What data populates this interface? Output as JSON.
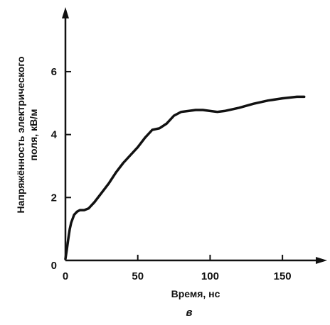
{
  "chart_data": {
    "type": "line",
    "xlabel": "Время, нс",
    "ylabel_lines": [
      "Напряжённость электрического",
      "поля, кВ/м"
    ],
    "panel_label": "в",
    "xlim": [
      0,
      175
    ],
    "ylim": [
      0,
      7.6
    ],
    "x_ticks": [
      0,
      50,
      100,
      150
    ],
    "x_tick_labels": [
      "0",
      "50",
      "100",
      "150"
    ],
    "y_ticks": [
      0,
      2,
      4,
      6
    ],
    "y_tick_labels": [
      "0",
      "2",
      "4",
      "6"
    ],
    "grid": false,
    "series": [
      {
        "color": "#111111",
        "x": [
          0,
          1,
          2,
          3,
          4,
          6,
          8,
          10,
          13,
          16,
          20,
          25,
          30,
          35,
          40,
          45,
          50,
          55,
          60,
          65,
          70,
          75,
          80,
          85,
          90,
          95,
          100,
          105,
          110,
          120,
          130,
          140,
          150,
          160,
          165
        ],
        "y": [
          0.05,
          0.35,
          0.7,
          1.0,
          1.2,
          1.45,
          1.55,
          1.6,
          1.6,
          1.65,
          1.85,
          2.15,
          2.45,
          2.8,
          3.1,
          3.35,
          3.6,
          3.9,
          4.15,
          4.2,
          4.35,
          4.6,
          4.72,
          4.75,
          4.78,
          4.78,
          4.75,
          4.72,
          4.75,
          4.85,
          4.98,
          5.08,
          5.15,
          5.2,
          5.2
        ]
      }
    ]
  }
}
